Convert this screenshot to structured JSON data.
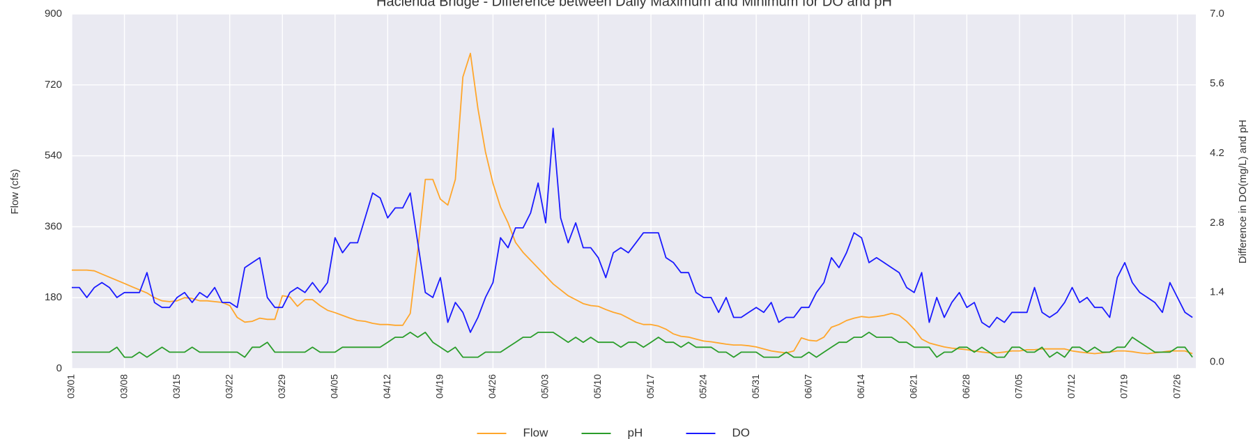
{
  "chart_data": {
    "type": "line",
    "title": "Hacienda Bridge - Difference between Daily Maximum and Minimum for DO and pH",
    "ylabel": "Flow (cfs)",
    "y2label": "Difference in DO(mg/L) and pH",
    "categories": [
      "03/01",
      null,
      null,
      null,
      null,
      null,
      null,
      "03/08",
      null,
      null,
      null,
      null,
      null,
      null,
      "03/15",
      null,
      null,
      null,
      null,
      null,
      null,
      "03/22",
      null,
      null,
      null,
      null,
      null,
      null,
      "03/29",
      null,
      null,
      null,
      null,
      null,
      null,
      "04/05",
      null,
      null,
      null,
      null,
      null,
      null,
      "04/12",
      null,
      null,
      null,
      null,
      null,
      null,
      "04/19",
      null,
      null,
      null,
      null,
      null,
      null,
      "04/26",
      null,
      null,
      null,
      null,
      null,
      null,
      "05/03",
      null,
      null,
      null,
      null,
      null,
      null,
      "05/10",
      null,
      null,
      null,
      null,
      null,
      null,
      "05/17",
      null,
      null,
      null,
      null,
      null,
      null,
      "05/24",
      null,
      null,
      null,
      null,
      null,
      null,
      "05/31",
      null,
      null,
      null,
      null,
      null,
      null,
      "06/07",
      null,
      null,
      null,
      null,
      null,
      null,
      "06/14",
      null,
      null,
      null,
      null,
      null,
      null,
      "06/21",
      null,
      null,
      null,
      null,
      null,
      null,
      "06/28",
      null,
      null,
      null,
      null,
      null,
      null,
      "07/05",
      null,
      null,
      null,
      null,
      null,
      null,
      "07/12",
      null,
      null,
      null,
      null,
      null,
      null,
      "07/19",
      null,
      null,
      null,
      null,
      null,
      null,
      "07/26",
      null,
      null
    ],
    "series": [
      {
        "name": "Flow",
        "color": "#ffa62b",
        "values": [
          250,
          250,
          250,
          248,
          240,
          232,
          224,
          216,
          208,
          200,
          192,
          180,
          172,
          170,
          172,
          180,
          178,
          172,
          172,
          170,
          168,
          160,
          130,
          118,
          120,
          128,
          125,
          125,
          185,
          182,
          158,
          175,
          175,
          160,
          148,
          142,
          135,
          128,
          122,
          120,
          115,
          112,
          112,
          110,
          110,
          140,
          300,
          480,
          480,
          430,
          415,
          480,
          740,
          800,
          660,
          550,
          470,
          410,
          370,
          320,
          295,
          275,
          255,
          235,
          215,
          200,
          185,
          175,
          165,
          160,
          158,
          150,
          143,
          138,
          128,
          118,
          112,
          112,
          108,
          100,
          88,
          82,
          80,
          75,
          70,
          68,
          65,
          62,
          60,
          60,
          58,
          55,
          50,
          45,
          42,
          40,
          45,
          78,
          72,
          70,
          80,
          105,
          112,
          122,
          128,
          132,
          130,
          132,
          135,
          140,
          135,
          120,
          100,
          75,
          65,
          60,
          55,
          52,
          50,
          48,
          45,
          42,
          40,
          40,
          42,
          45,
          45,
          48,
          48,
          50,
          50,
          50,
          50,
          45,
          42,
          40,
          38,
          40,
          42,
          45,
          45,
          43,
          40,
          38,
          40,
          42,
          45,
          45,
          45,
          38
        ]
      },
      {
        "name": "pH",
        "color": "#2a9d2a",
        "axis": "y2",
        "values": [
          0.2,
          0.2,
          0.2,
          0.2,
          0.2,
          0.2,
          0.3,
          0.1,
          0.1,
          0.2,
          0.1,
          0.2,
          0.3,
          0.2,
          0.2,
          0.2,
          0.3,
          0.2,
          0.2,
          0.2,
          0.2,
          0.2,
          0.2,
          0.1,
          0.3,
          0.3,
          0.4,
          0.2,
          0.2,
          0.2,
          0.2,
          0.2,
          0.3,
          0.2,
          0.2,
          0.2,
          0.3,
          0.3,
          0.3,
          0.3,
          0.3,
          0.3,
          0.4,
          0.5,
          0.5,
          0.6,
          0.5,
          0.6,
          0.4,
          0.3,
          0.2,
          0.3,
          0.1,
          0.1,
          0.1,
          0.2,
          0.2,
          0.2,
          0.3,
          0.4,
          0.5,
          0.5,
          0.6,
          0.6,
          0.6,
          0.5,
          0.4,
          0.5,
          0.4,
          0.5,
          0.4,
          0.4,
          0.4,
          0.3,
          0.4,
          0.4,
          0.3,
          0.4,
          0.5,
          0.4,
          0.4,
          0.3,
          0.4,
          0.3,
          0.3,
          0.3,
          0.2,
          0.2,
          0.1,
          0.2,
          0.2,
          0.2,
          0.1,
          0.1,
          0.1,
          0.2,
          0.1,
          0.1,
          0.2,
          0.1,
          0.2,
          0.3,
          0.4,
          0.4,
          0.5,
          0.5,
          0.6,
          0.5,
          0.5,
          0.5,
          0.4,
          0.4,
          0.3,
          0.3,
          0.3,
          0.1,
          0.2,
          0.2,
          0.3,
          0.3,
          0.2,
          0.3,
          0.2,
          0.1,
          0.1,
          0.3,
          0.3,
          0.2,
          0.2,
          0.3,
          0.1,
          0.2,
          0.1,
          0.3,
          0.3,
          0.2,
          0.3,
          0.2,
          0.2,
          0.3,
          0.3,
          0.5,
          0.4,
          0.3,
          0.2,
          0.2,
          0.2,
          0.3,
          0.3,
          0.1
        ]
      },
      {
        "name": "DO",
        "color": "#1a1aff",
        "axis": "y2",
        "values": [
          1.5,
          1.5,
          1.3,
          1.5,
          1.6,
          1.5,
          1.3,
          1.4,
          1.4,
          1.4,
          1.8,
          1.2,
          1.1,
          1.1,
          1.3,
          1.4,
          1.2,
          1.4,
          1.3,
          1.5,
          1.2,
          1.2,
          1.1,
          1.9,
          2.0,
          2.1,
          1.3,
          1.1,
          1.1,
          1.4,
          1.5,
          1.4,
          1.6,
          1.4,
          1.6,
          2.5,
          2.2,
          2.4,
          2.4,
          2.9,
          3.4,
          3.3,
          2.9,
          3.1,
          3.1,
          3.4,
          2.4,
          1.4,
          1.3,
          1.7,
          0.8,
          1.2,
          1.0,
          0.6,
          0.9,
          1.3,
          1.6,
          2.5,
          2.3,
          2.7,
          2.7,
          3.0,
          3.6,
          2.8,
          4.7,
          2.9,
          2.4,
          2.8,
          2.3,
          2.3,
          2.1,
          1.7,
          2.2,
          2.3,
          2.2,
          2.4,
          2.6,
          2.6,
          2.6,
          2.1,
          2.0,
          1.8,
          1.8,
          1.4,
          1.3,
          1.3,
          1.0,
          1.3,
          0.9,
          0.9,
          1.0,
          1.1,
          1.0,
          1.2,
          0.8,
          0.9,
          0.9,
          1.1,
          1.1,
          1.4,
          1.6,
          2.1,
          1.9,
          2.2,
          2.6,
          2.5,
          2.0,
          2.1,
          2.0,
          1.9,
          1.8,
          1.5,
          1.4,
          1.8,
          0.8,
          1.3,
          0.9,
          1.2,
          1.4,
          1.1,
          1.2,
          0.8,
          0.7,
          0.9,
          0.8,
          1.0,
          1.0,
          1.0,
          1.5,
          1.0,
          0.9,
          1.0,
          1.2,
          1.5,
          1.2,
          1.3,
          1.1,
          1.1,
          0.9,
          1.7,
          2.0,
          1.6,
          1.4,
          1.3,
          1.2,
          1.0,
          1.6,
          1.3,
          1.0,
          0.9
        ]
      }
    ],
    "ylim": [
      0,
      900
    ],
    "yticks": [
      0,
      180,
      360,
      540,
      720,
      900
    ],
    "y2lim": [
      -0.13,
      7.0
    ],
    "y2ticks": [
      {
        "value": 0,
        "label": "0.0"
      },
      1.4,
      2.8,
      4.2,
      5.6,
      {
        "value": 7,
        "label": "7.0"
      }
    ],
    "grid": true,
    "legend": "lower center"
  }
}
